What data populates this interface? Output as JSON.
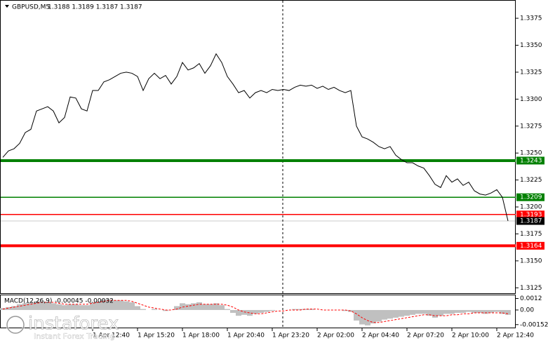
{
  "chart_data": [
    {
      "type": "line",
      "title": "GBPUSD,M5",
      "subtitle": "1.3188 1.3189 1.3187 1.3187",
      "x": [
        "1 Apr 07:20",
        "1 Apr 07:40",
        "1 Apr 08:00",
        "1 Apr 08:20",
        "1 Apr 08:40",
        "1 Apr 09:00",
        "1 Apr 09:20",
        "1 Apr 09:40",
        "1 Apr 10:00",
        "1 Apr 10:20",
        "1 Apr 10:40",
        "1 Apr 11:00",
        "1 Apr 11:20",
        "1 Apr 11:40",
        "1 Apr 12:00",
        "1 Apr 12:20",
        "1 Apr 12:40",
        "1 Apr 13:00",
        "1 Apr 13:20",
        "1 Apr 13:40",
        "1 Apr 14:00",
        "1 Apr 14:20",
        "1 Apr 14:40",
        "1 Apr 15:00",
        "1 Apr 15:20",
        "1 Apr 15:40",
        "1 Apr 16:00",
        "1 Apr 16:20",
        "1 Apr 16:40",
        "1 Apr 17:00",
        "1 Apr 17:20",
        "1 Apr 17:40",
        "1 Apr 18:00",
        "1 Apr 18:20",
        "1 Apr 18:40",
        "1 Apr 19:00",
        "1 Apr 19:20",
        "1 Apr 19:40",
        "1 Apr 20:00",
        "1 Apr 20:20",
        "1 Apr 20:40",
        "1 Apr 21:00",
        "1 Apr 21:20",
        "1 Apr 21:40",
        "1 Apr 22:00",
        "1 Apr 22:20",
        "1 Apr 22:40",
        "1 Apr 23:00",
        "1 Apr 23:20",
        "1 Apr 23:40",
        "2 Apr 00:00",
        "2 Apr 00:20",
        "2 Apr 00:40",
        "2 Apr 01:00",
        "2 Apr 01:20",
        "2 Apr 01:40",
        "2 Apr 02:00",
        "2 Apr 02:20",
        "2 Apr 02:40",
        "2 Apr 03:00",
        "2 Apr 03:20",
        "2 Apr 03:40",
        "2 Apr 04:00",
        "2 Apr 04:20",
        "2 Apr 04:40",
        "2 Apr 05:00",
        "2 Apr 05:20",
        "2 Apr 05:40",
        "2 Apr 06:00",
        "2 Apr 06:20",
        "2 Apr 06:40",
        "2 Apr 07:00",
        "2 Apr 07:20",
        "2 Apr 07:40",
        "2 Apr 08:00",
        "2 Apr 08:20",
        "2 Apr 08:40",
        "2 Apr 09:00",
        "2 Apr 09:20",
        "2 Apr 09:40",
        "2 Apr 10:00",
        "2 Apr 10:20",
        "2 Apr 10:40",
        "2 Apr 11:00",
        "2 Apr 11:20",
        "2 Apr 11:40",
        "2 Apr 12:00",
        "2 Apr 12:20",
        "2 Apr 12:40",
        "2 Apr 13:00",
        "2 Apr 13:20"
      ],
      "series": [
        {
          "color": "#000000",
          "values": [
            1.3246,
            1.3252,
            1.3254,
            1.3259,
            1.3269,
            1.3272,
            1.3289,
            1.3291,
            1.3293,
            1.3289,
            1.3278,
            1.3283,
            1.3302,
            1.3301,
            1.3291,
            1.3289,
            1.3308,
            1.3308,
            1.3316,
            1.3318,
            1.3321,
            1.3324,
            1.3325,
            1.3324,
            1.3321,
            1.3308,
            1.3319,
            1.3324,
            1.3319,
            1.3322,
            1.3314,
            1.3321,
            1.3334,
            1.3327,
            1.3329,
            1.3333,
            1.3324,
            1.3331,
            1.3342,
            1.3334,
            1.3321,
            1.3314,
            1.3306,
            1.3308,
            1.3301,
            1.3306,
            1.3308,
            1.3306,
            1.3309,
            1.3308,
            1.3309,
            1.3308,
            1.3311,
            1.3313,
            1.3312,
            1.3313,
            1.331,
            1.3312,
            1.3309,
            1.3311,
            1.3308,
            1.3306,
            1.3308,
            1.3275,
            1.3265,
            1.3263,
            1.326,
            1.3256,
            1.3254,
            1.3256,
            1.3248,
            1.3244,
            1.3241,
            1.3241,
            1.3238,
            1.3236,
            1.3229,
            1.3221,
            1.3218,
            1.3229,
            1.3223,
            1.3226,
            1.322,
            1.3223,
            1.3215,
            1.3212,
            1.3211,
            1.3213,
            1.3216,
            1.3209,
            1.3187
          ]
        }
      ],
      "ylim": [
        1.312,
        1.339
      ],
      "yticks": [
        1.3125,
        {
          "value": 1.315,
          "label": "1.3150"
        },
        1.3175,
        {
          "value": 1.32,
          "label": "1.3200"
        },
        1.3225,
        {
          "value": 1.325,
          "label": "1.3250"
        },
        1.3275,
        {
          "value": 1.33,
          "label": "1.3300"
        },
        1.3325,
        {
          "value": 1.335,
          "label": "1.3350"
        },
        1.3375
      ],
      "levels": [
        {
          "value": 1.3243,
          "color": "#008000",
          "thick": true
        },
        {
          "value": 1.3209,
          "color": "#008000",
          "thick": false
        },
        {
          "value": 1.3193,
          "color": "#ff0000",
          "thick": false
        },
        {
          "value": 1.3164,
          "color": "#ff0000",
          "thick": true
        },
        {
          "value": 1.3187,
          "color": "#000000",
          "thick": false
        }
      ]
    },
    {
      "type": "macd",
      "title": "MACD(12,26,9)",
      "subtitle": "-0.00045 -0.00032",
      "series": [
        {
          "kind": "bar",
          "color": "#c0c0c0",
          "values": [
            0.0002,
            0.0003,
            0.0004,
            0.0006,
            0.0007,
            0.0008,
            0.0009,
            0.0009,
            0.0008,
            0.0007,
            0.0006,
            0.0005,
            0.0006,
            0.0006,
            0.0005,
            0.0005,
            0.0008,
            0.0009,
            0.0011,
            0.0011,
            0.001,
            0.001,
            0.0009,
            0.0008,
            0.0004,
            0.0001,
            0,
            0.0001,
            0,
            -0.0001,
            0,
            0.0004,
            0.0007,
            0.0006,
            0.0007,
            0.0008,
            0.0006,
            0.0006,
            0.0007,
            0.0005,
            0.0001,
            -0.0003,
            -0.0006,
            -0.0005,
            -0.0006,
            -0.0004,
            -0.0003,
            -0.0002,
            -0.0001,
            0,
            0,
            0,
            0.0001,
            0.0001,
            0.0001,
            0.0001,
            0,
            0,
            0,
            0,
            0,
            -0.0001,
            -0.0002,
            -0.0011,
            -0.0015,
            -0.0016,
            -0.0014,
            -0.0012,
            -0.001,
            -0.0009,
            -0.0008,
            -0.0007,
            -0.0006,
            -0.0005,
            -0.0004,
            -0.0004,
            -0.0006,
            -0.0008,
            -0.0006,
            -0.0004,
            -0.0004,
            -0.0003,
            -0.0003,
            -0.0002,
            -0.0003,
            -0.0003,
            -0.0004,
            -0.0003,
            -0.0002,
            -0.0004,
            -0.0005
          ]
        },
        {
          "kind": "dashed-line",
          "color": "#ff0000",
          "values": [
            0.0001,
            0.0002,
            0.0003,
            0.0004,
            0.0005,
            0.0006,
            0.0007,
            0.0008,
            0.0008,
            0.0008,
            0.0007,
            0.0006,
            0.0006,
            0.0006,
            0.0006,
            0.0006,
            0.0007,
            0.0008,
            0.0009,
            0.001,
            0.001,
            0.001,
            0.001,
            0.0009,
            0.0007,
            0.0005,
            0.0003,
            0.0002,
            0.0001,
            0,
            0,
            0.0001,
            0.0003,
            0.0004,
            0.0005,
            0.0006,
            0.0006,
            0.0006,
            0.0006,
            0.0006,
            0.0005,
            0.0003,
            0,
            -0.0002,
            -0.0003,
            -0.0004,
            -0.0004,
            -0.0003,
            -0.0002,
            -0.0001,
            -0.0001,
            0,
            0,
            0,
            0.0001,
            0.0001,
            0.0001,
            0,
            0,
            0,
            0,
            0,
            -0.0001,
            -0.0004,
            -0.0008,
            -0.0011,
            -0.0013,
            -0.0013,
            -0.0012,
            -0.0011,
            -0.001,
            -0.0009,
            -0.0008,
            -0.0007,
            -0.0006,
            -0.0005,
            -0.0005,
            -0.0006,
            -0.0006,
            -0.0006,
            -0.0005,
            -0.0005,
            -0.0004,
            -0.0004,
            -0.0003,
            -0.0003,
            -0.0003,
            -0.0003,
            -0.0003,
            -0.0003,
            -0.0004
          ]
        }
      ],
      "ylim": [
        -0.0019,
        0.0016
      ],
      "yticks": [
        0.0012,
        {
          "value": 0,
          "label": "0.00"
        },
        -0.00152
      ],
      "xticks": [
        "1 Apr 12:40",
        "1 Apr 15:20",
        "1 Apr 18:00",
        "1 Apr 20:40",
        "1 Apr 23:20",
        "2 Apr 02:00",
        "2 Apr 04:40",
        "2 Apr 07:20",
        "2 Apr 10:00",
        "2 Apr 12:40"
      ]
    }
  ],
  "branding": {
    "name": "instaforex",
    "tagline": "Instant Forex Trading"
  }
}
